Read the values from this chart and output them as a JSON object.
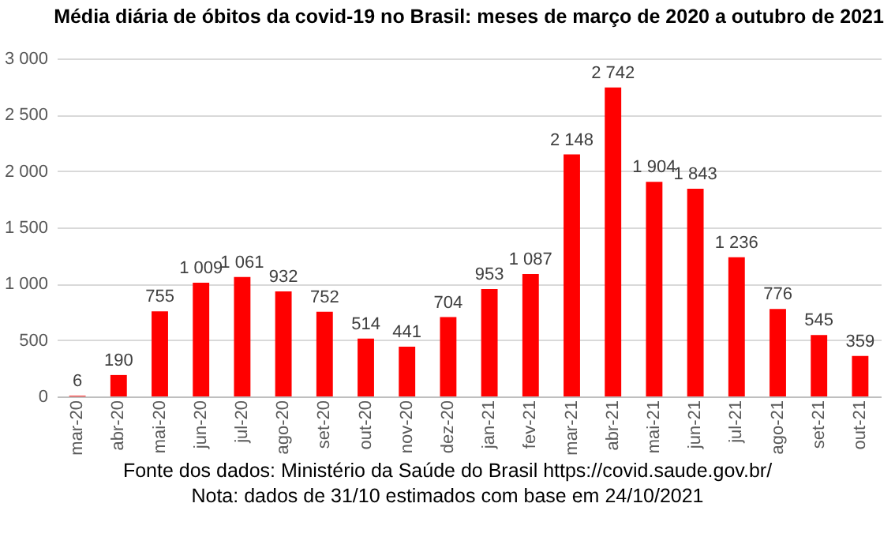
{
  "chart_data": {
    "type": "bar",
    "title": "Média diária de óbitos da covid-19 no Brasil: meses de março de 2020 a outubro de 2021",
    "categories": [
      "mar-20",
      "abr-20",
      "mai-20",
      "jun-20",
      "jul-20",
      "ago-20",
      "set-20",
      "out-20",
      "nov-20",
      "dez-20",
      "jan-21",
      "fev-21",
      "mar-21",
      "abr-21",
      "mai-21",
      "jun-21",
      "jul-21",
      "ago-21",
      "set-21",
      "out-21"
    ],
    "values": [
      6,
      190,
      755,
      1009,
      1061,
      932,
      752,
      514,
      441,
      704,
      953,
      1087,
      2148,
      2742,
      1904,
      1843,
      1236,
      776,
      545,
      359
    ],
    "value_labels": [
      "6",
      "190",
      "755",
      "1 009",
      "1 061",
      "932",
      "752",
      "514",
      "441",
      "704",
      "953",
      "1 087",
      "2 148",
      "2 742",
      "1 904",
      "1 843",
      "1 236",
      "776",
      "545",
      "359"
    ],
    "color": "#ff0000",
    "ylim": [
      0,
      3000
    ],
    "yticks": [
      0,
      500,
      {
        "value": 1000,
        "label": "1 000"
      },
      {
        "value": 1500,
        "label": "1 500"
      },
      {
        "value": 2000,
        "label": "2 000"
      },
      {
        "value": 2500,
        "label": "2 500"
      },
      {
        "value": 3000,
        "label": "3 000"
      }
    ],
    "grid": "y",
    "annotations": [
      "Fonte dos dados: Ministério da Saúde do Brasil https://covid.saude.gov.br/",
      "Nota: dados de 31/10 estimados com base em 24/10/2021"
    ]
  }
}
